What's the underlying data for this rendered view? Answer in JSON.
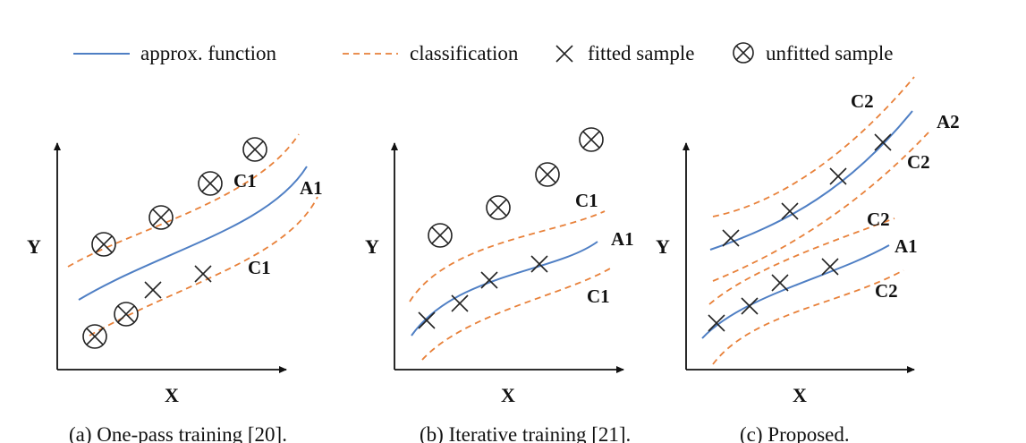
{
  "legend": {
    "approx_function": "approx. function",
    "classification": "classification",
    "fitted_sample": "fitted sample",
    "unfitted_sample": "unfitted sample"
  },
  "panels": [
    {
      "caption": "(a) One-pass training [20].",
      "x_label": "X",
      "y_label": "Y",
      "curve_labels": {
        "approx_1": "A1",
        "class_upper": "C1",
        "class_lower": "C1"
      }
    },
    {
      "caption": "(b) Iterative training [21].",
      "x_label": "X",
      "y_label": "Y",
      "curve_labels": {
        "approx_1": "A1",
        "class_upper": "C1",
        "class_lower": "C1"
      }
    },
    {
      "caption": "(c) Proposed.",
      "x_label": "X",
      "y_label": "Y",
      "curve_labels": {
        "class_top": "C2",
        "approx_2": "A2",
        "class_a2_lower": "C2",
        "class_a1_upper": "C2",
        "approx_1": "A1",
        "class_bottom": "C2"
      }
    }
  ],
  "colors": {
    "approx_function": "#4f7fc4",
    "classification": "#e8813a",
    "axis": "#111111"
  }
}
